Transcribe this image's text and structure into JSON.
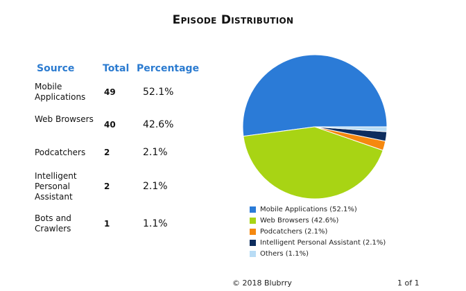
{
  "title": "Episode Distribution",
  "table": {
    "headers": {
      "source": "Source",
      "total": "Total",
      "percentage": "Percentage"
    },
    "rows": [
      {
        "source": "Mobile Applications",
        "total": "49",
        "percentage": "52.1%"
      },
      {
        "source": "Web Browsers",
        "total": "40",
        "percentage": "42.6%"
      },
      {
        "source": "Podcatchers",
        "total": "2",
        "percentage": "2.1%"
      },
      {
        "source": "Intelligent Personal Assistant",
        "total": "2",
        "percentage": "2.1%"
      },
      {
        "source": "Bots and Crawlers",
        "total": "1",
        "percentage": "1.1%"
      }
    ]
  },
  "chart_data": {
    "type": "pie",
    "title": "Episode Distribution",
    "slices": [
      {
        "name": "Mobile Applications",
        "value": 52.1,
        "color": "#2b7bd7"
      },
      {
        "name": "Web Browsers",
        "value": 42.6,
        "color": "#a8d414"
      },
      {
        "name": "Podcatchers",
        "value": 2.1,
        "color": "#f5880f"
      },
      {
        "name": "Intelligent Personal Assistant",
        "value": 2.1,
        "color": "#0d2d5e"
      },
      {
        "name": "Others",
        "value": 1.1,
        "color": "#b8dcf5"
      }
    ],
    "legend": {
      "position": "bottom",
      "entries": [
        "Mobile Applications (52.1%)",
        "Web Browsers (42.6%)",
        "Podcatchers (2.1%)",
        "Intelligent Personal Assistant (2.1%)",
        "Others (1.1%)"
      ]
    }
  },
  "footer": {
    "copyright": "© 2018 Blubrry",
    "page": "1 of 1"
  }
}
